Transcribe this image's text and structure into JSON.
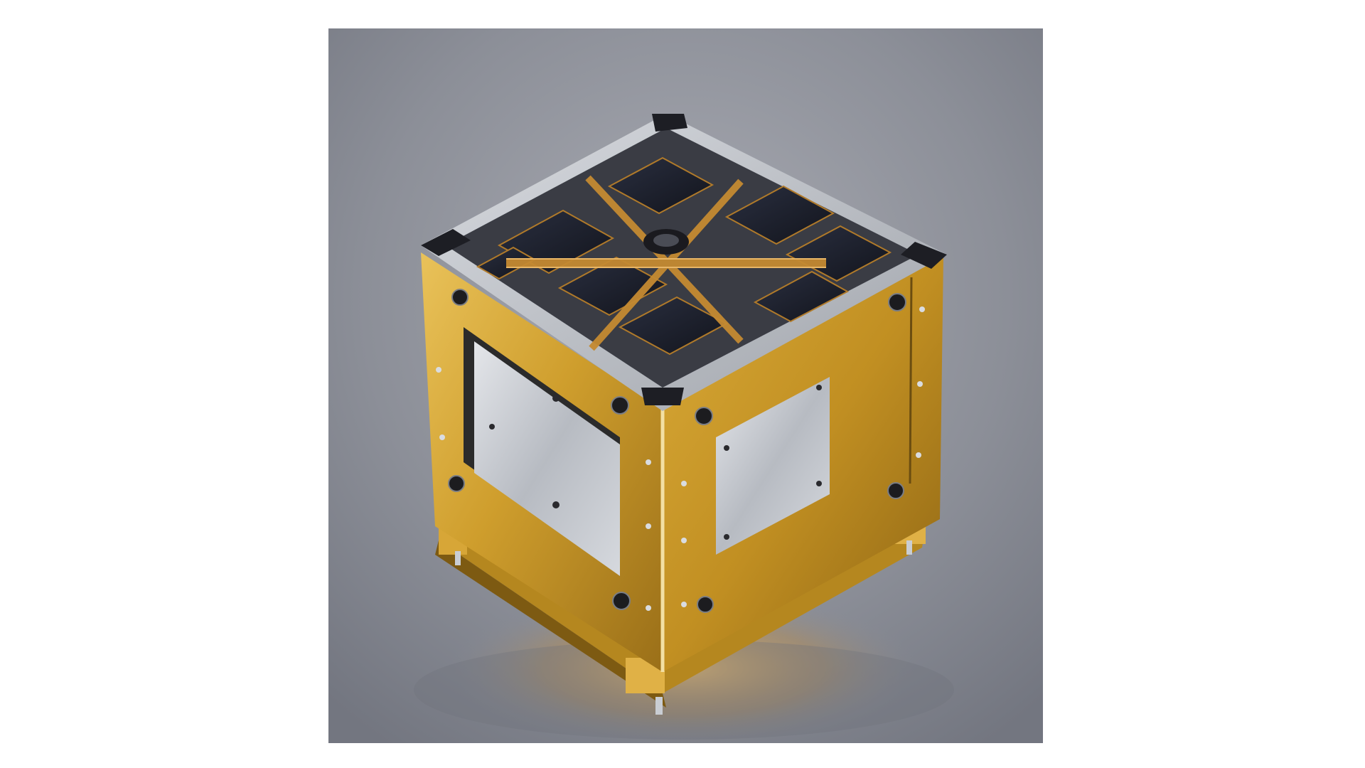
{
  "image": {
    "subject_icon": "cubesat-photo",
    "colors": {
      "background": "#8d9099",
      "gold_panel": "#c89b2c",
      "silver_frame": "#c9cdd3",
      "solar_cell": "#1c2030",
      "copper_trace": "#b07a2a"
    }
  }
}
